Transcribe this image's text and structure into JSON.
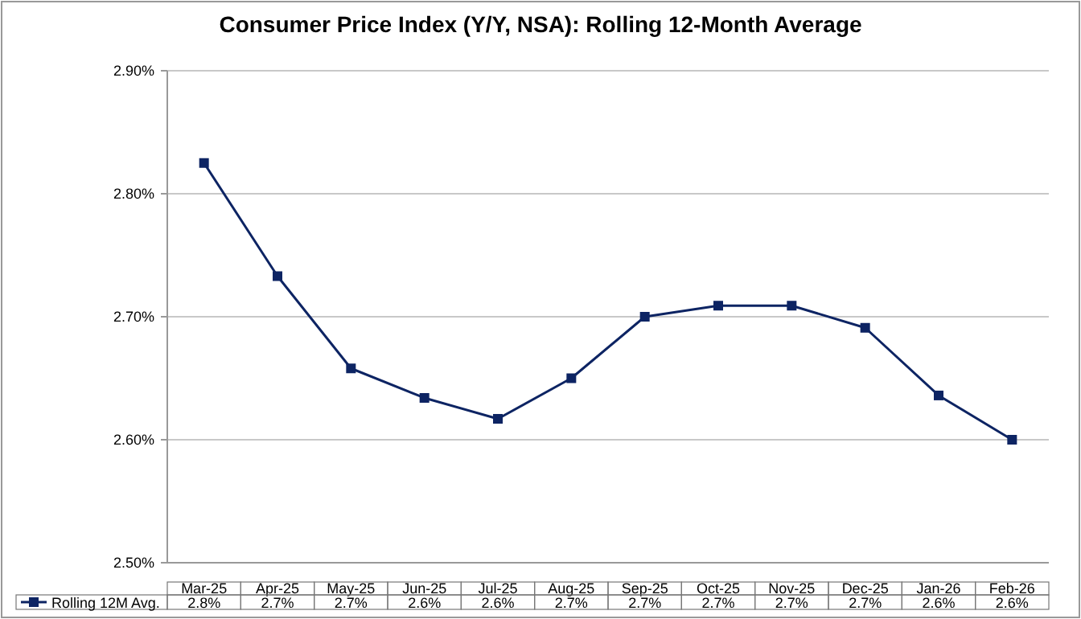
{
  "chart_data": {
    "type": "line",
    "title": "Consumer Price Index (Y/Y, NSA): Rolling  12-Month Average",
    "categories": [
      "Mar-25",
      "Apr-25",
      "May-25",
      "Jun-25",
      "Jul-25",
      "Aug-25",
      "Sep-25",
      "Oct-25",
      "Nov-25",
      "Dec-25",
      "Jan-26",
      "Feb-26"
    ],
    "series": [
      {
        "name": "Rolling 12M Avg.",
        "color": "#0d2463",
        "values": [
          2.825,
          2.733,
          2.658,
          2.634,
          2.617,
          2.65,
          2.7,
          2.709,
          2.709,
          2.691,
          2.636,
          2.6
        ],
        "value_labels": [
          "2.8%",
          "2.7%",
          "2.7%",
          "2.6%",
          "2.6%",
          "2.7%",
          "2.7%",
          "2.7%",
          "2.7%",
          "2.7%",
          "2.6%",
          "2.6%"
        ]
      }
    ],
    "ylim": [
      2.5,
      2.9
    ],
    "yticks": [
      {
        "value": 2.5,
        "label": "2.50%"
      },
      {
        "value": 2.6,
        "label": "2.60%"
      },
      {
        "value": 2.7,
        "label": "2.70%"
      },
      {
        "value": 2.8,
        "label": "2.80%"
      },
      {
        "value": 2.9,
        "label": "2.90%"
      }
    ],
    "grid": "y",
    "marker": "square",
    "line_style": "solid",
    "legend": "bottom"
  }
}
